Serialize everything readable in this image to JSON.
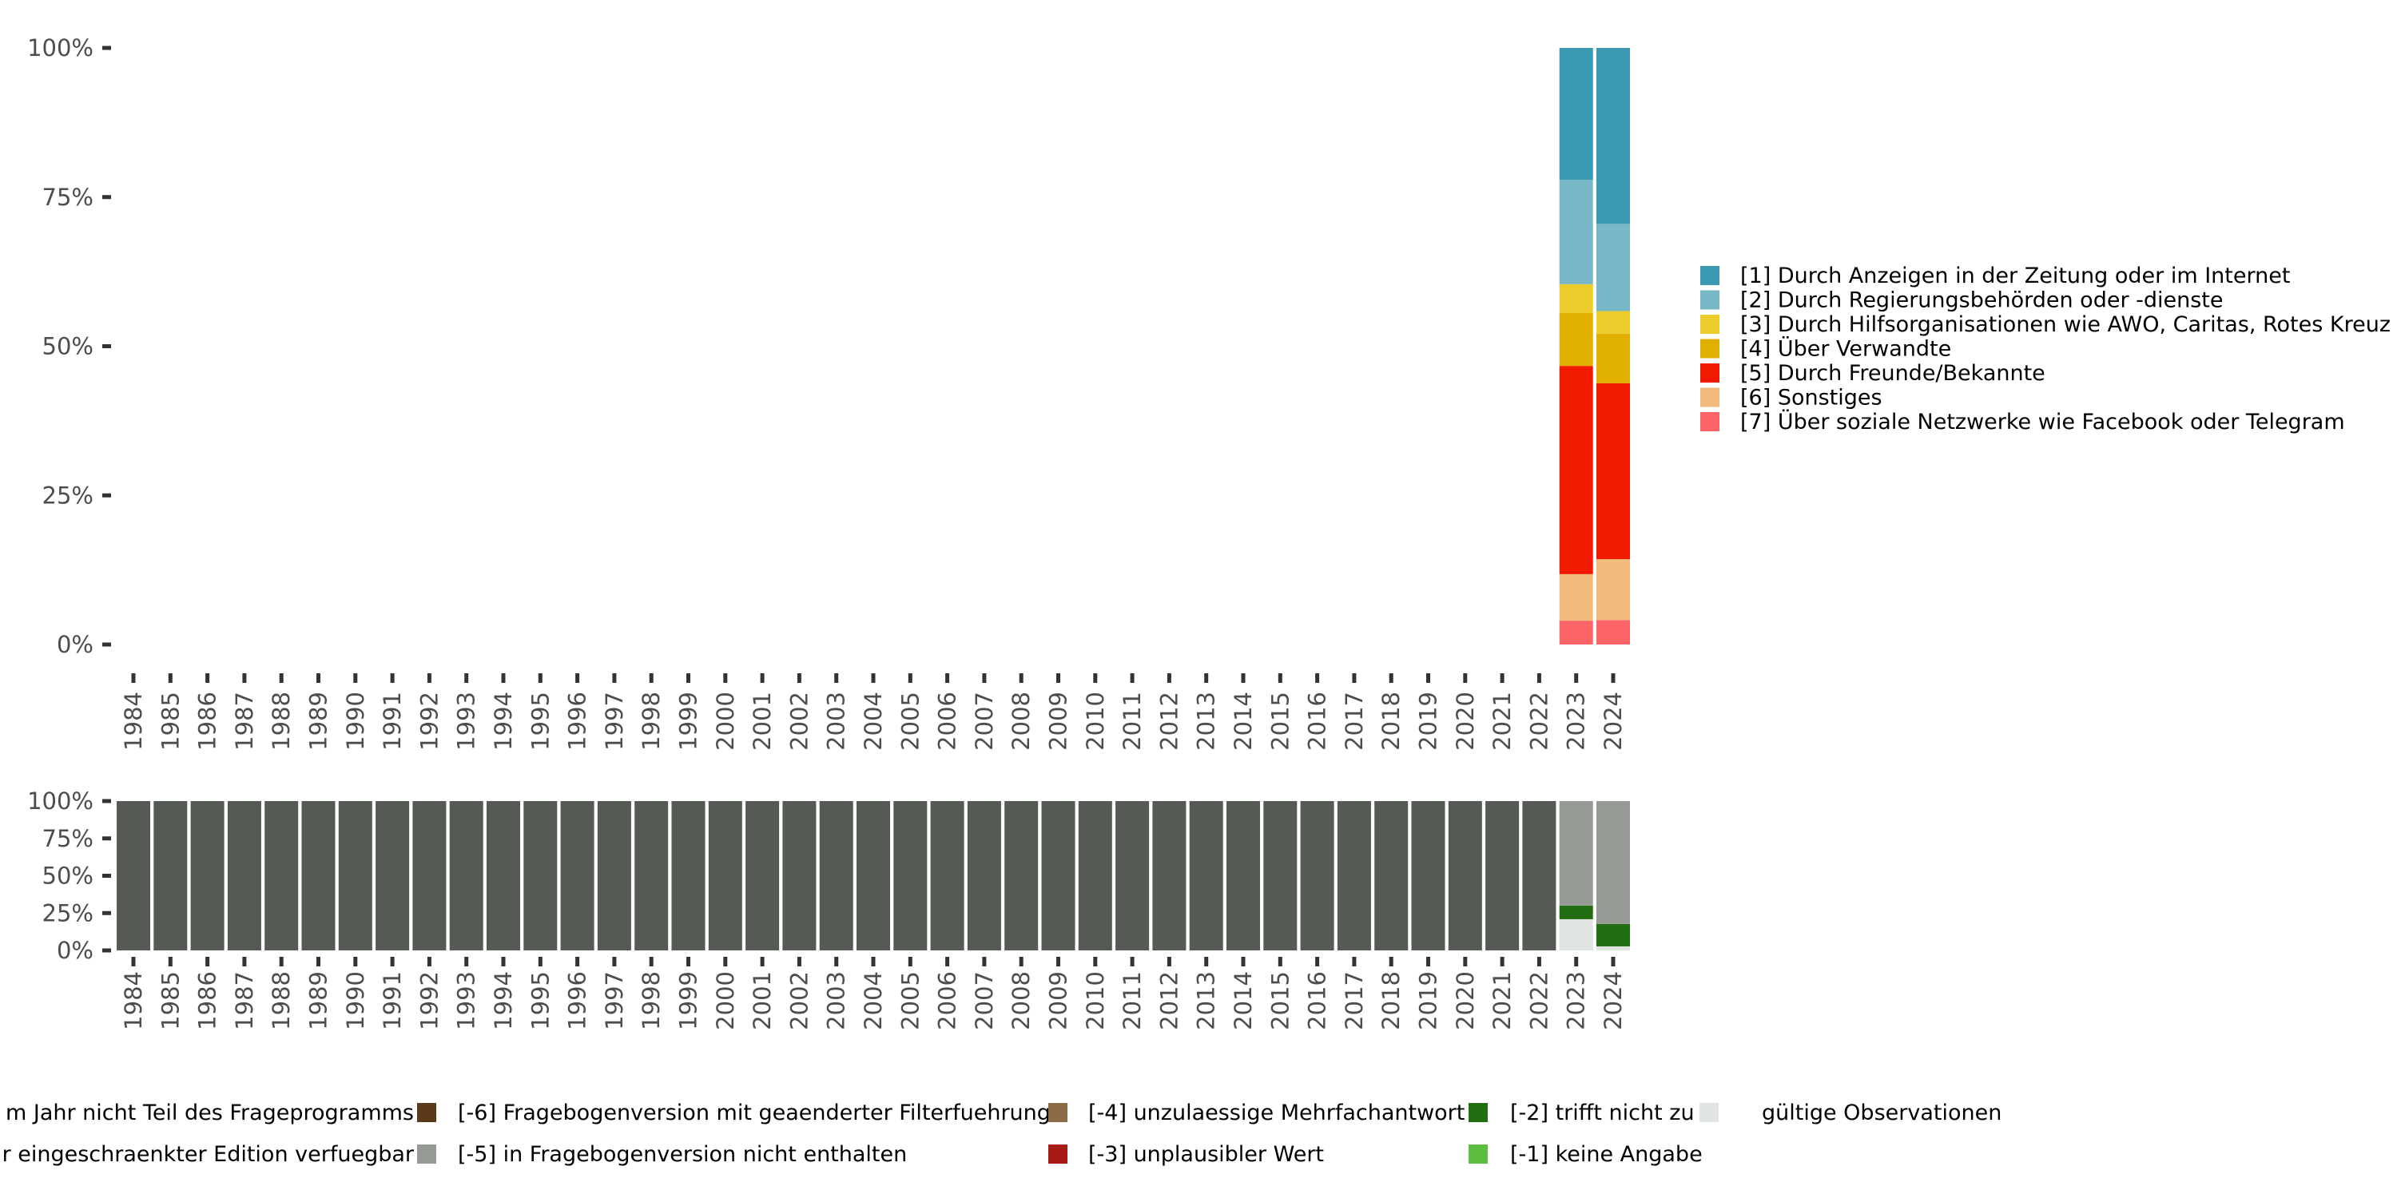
{
  "chart_data": [
    {
      "id": "main",
      "type": "bar",
      "stacked": true,
      "normalized": true,
      "title": "",
      "xlabel": "",
      "ylabel": "",
      "ylim": [
        0,
        100
      ],
      "y_ticks": [
        "0%",
        "25%",
        "50%",
        "75%",
        "100%"
      ],
      "y_tick_values": [
        0,
        25,
        50,
        75,
        100
      ],
      "categories": [
        "1984",
        "1985",
        "1986",
        "1987",
        "1988",
        "1989",
        "1990",
        "1991",
        "1992",
        "1993",
        "1994",
        "1995",
        "1996",
        "1997",
        "1998",
        "1999",
        "2000",
        "2001",
        "2002",
        "2003",
        "2004",
        "2005",
        "2006",
        "2007",
        "2008",
        "2009",
        "2010",
        "2011",
        "2012",
        "2013",
        "2014",
        "2015",
        "2016",
        "2017",
        "2018",
        "2019",
        "2020",
        "2021",
        "2022",
        "2023",
        "2024"
      ],
      "legend_position": "right",
      "series": [
        {
          "name": "[1] Durch Anzeigen in der Zeitung oder im Internet",
          "color": "#3b99b1",
          "values": {
            "2023": 22.1,
            "2024": 29.5
          }
        },
        {
          "name": "[2] Durch Regierungsbehörden oder -dienste",
          "color": "#78b7c5",
          "values": {
            "2023": 17.5,
            "2024": 14.6
          }
        },
        {
          "name": "[3] Durch Hilfsorganisationen wie AWO, Caritas, Rotes Kreuz",
          "color": "#ebcc2a",
          "values": {
            "2023": 4.8,
            "2024": 3.8
          }
        },
        {
          "name": "[4] Über Verwandte",
          "color": "#e1af00",
          "values": {
            "2023": 8.9,
            "2024": 8.3
          }
        },
        {
          "name": "[5] Durch Freunde/Bekannte",
          "color": "#f21a00",
          "values": {
            "2023": 34.9,
            "2024": 29.5
          }
        },
        {
          "name": "[6] Sonstiges",
          "color": "#f1bb7b",
          "values": {
            "2023": 7.8,
            "2024": 10.2
          }
        },
        {
          "name": "[7] Über soziale Netzwerke wie Facebook oder Telegram",
          "color": "#fd6467",
          "values": {
            "2023": 4.0,
            "2024": 4.1
          }
        }
      ]
    },
    {
      "id": "missing",
      "type": "bar",
      "stacked": true,
      "normalized": true,
      "title": "",
      "xlabel": "",
      "ylabel": "",
      "ylim": [
        0,
        100
      ],
      "y_ticks": [
        "0%",
        "25%",
        "50%",
        "75%",
        "100%"
      ],
      "y_tick_values": [
        0,
        25,
        50,
        75,
        100
      ],
      "categories": [
        "1984",
        "1985",
        "1986",
        "1987",
        "1988",
        "1989",
        "1990",
        "1991",
        "1992",
        "1993",
        "1994",
        "1995",
        "1996",
        "1997",
        "1998",
        "1999",
        "2000",
        "2001",
        "2002",
        "2003",
        "2004",
        "2005",
        "2006",
        "2007",
        "2008",
        "2009",
        "2010",
        "2011",
        "2012",
        "2013",
        "2014",
        "2015",
        "2016",
        "2017",
        "2018",
        "2019",
        "2020",
        "2021",
        "2022",
        "2023",
        "2024"
      ],
      "legend_position": "bottom",
      "series": [
        {
          "name": "...m Jahr nicht Teil des Frageprogramms",
          "color": "#555a55",
          "values": {
            "1984": 100,
            "1985": 100,
            "1986": 100,
            "1987": 100,
            "1988": 100,
            "1989": 100,
            "1990": 100,
            "1991": 100,
            "1992": 100,
            "1993": 100,
            "1994": 100,
            "1995": 100,
            "1996": 100,
            "1997": 100,
            "1998": 100,
            "1999": 100,
            "2000": 100,
            "2001": 100,
            "2002": 100,
            "2003": 100,
            "2004": 100,
            "2005": 100,
            "2006": 100,
            "2007": 100,
            "2008": 100,
            "2009": 100,
            "2010": 100,
            "2011": 100,
            "2012": 100,
            "2013": 100,
            "2014": 100,
            "2015": 100,
            "2016": 100,
            "2017": 100,
            "2018": 100,
            "2019": 100,
            "2020": 100,
            "2021": 100,
            "2022": 100
          }
        },
        {
          "name": "...r eingeschraenkter Edition verfuegbar",
          "color": "#b9b9b9",
          "values": {}
        },
        {
          "name": "[-6] Fragebogenversion mit geaenderter Filterfuehrung",
          "color": "#5a3a18",
          "values": {}
        },
        {
          "name": "[-5] in Fragebogenversion nicht enthalten",
          "color": "#969a94",
          "values": {
            "2023": 70.0,
            "2024": 82.3
          }
        },
        {
          "name": "[-4] unzulaessige Mehrfachantwort",
          "color": "#8c6a45",
          "values": {}
        },
        {
          "name": "[-3] unplausibler Wert",
          "color": "#a71b17",
          "values": {}
        },
        {
          "name": "[-2] trifft nicht zu",
          "color": "#226e12",
          "values": {
            "2023": 9.1,
            "2024": 15.0
          }
        },
        {
          "name": "[-1] keine Angabe",
          "color": "#5cbf40",
          "values": {}
        },
        {
          "name": "gültige Observationen",
          "color": "#e1e5e1",
          "values": {
            "2023": 20.9,
            "2024": 2.7
          }
        }
      ]
    }
  ],
  "main_legend": [
    {
      "label": "[1] Durch Anzeigen in der Zeitung oder im Internet",
      "color": "#3b99b1"
    },
    {
      "label": "[2] Durch Regierungsbehörden oder -dienste",
      "color": "#78b7c5"
    },
    {
      "label": "[3] Durch Hilfsorganisationen wie AWO, Caritas, Rotes Kreuz",
      "color": "#ebcc2a"
    },
    {
      "label": "[4] Über Verwandte",
      "color": "#e1af00"
    },
    {
      "label": "[5] Durch Freunde/Bekannte",
      "color": "#f21a00"
    },
    {
      "label": "[6] Sonstiges",
      "color": "#f1bb7b"
    },
    {
      "label": "[7] Über soziale Netzwerke wie Facebook oder Telegram",
      "color": "#fd6467"
    }
  ],
  "bottom_legend": [
    {
      "label": "m Jahr nicht Teil des Frageprogramms",
      "color": "#555a55",
      "key_visible": false
    },
    {
      "label": "r eingeschraenkter Edition verfuegbar",
      "color": "#b9b9b9",
      "key_visible": false
    },
    {
      "label": "[-6] Fragebogenversion mit geaenderter Filterfuehrung",
      "color": "#5a3a18",
      "key_visible": true
    },
    {
      "label": "[-5] in Fragebogenversion nicht enthalten",
      "color": "#969a94",
      "key_visible": true
    },
    {
      "label": "[-4] unzulaessige Mehrfachantwort",
      "color": "#8c6a45",
      "key_visible": true
    },
    {
      "label": "[-3] unplausibler Wert",
      "color": "#a71b17",
      "key_visible": true
    },
    {
      "label": "[-2] trifft nicht zu",
      "color": "#226e12",
      "key_visible": true
    },
    {
      "label": "[-1] keine Angabe",
      "color": "#5cbf40",
      "key_visible": true
    },
    {
      "label": "gültige Observationen",
      "color": "#e1e5e1",
      "key_visible": true
    }
  ]
}
